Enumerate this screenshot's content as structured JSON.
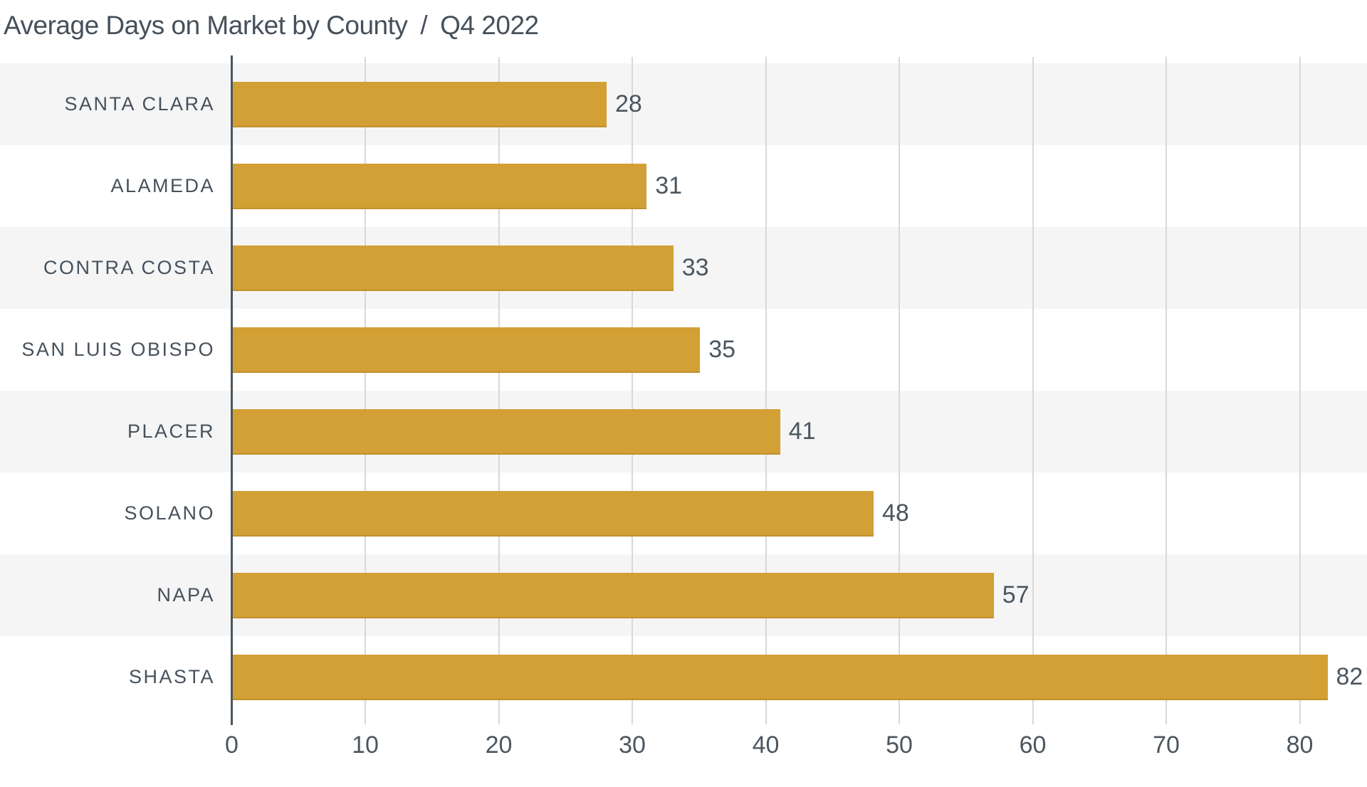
{
  "header": {
    "title": "Average Days on Market by County",
    "separator": "/",
    "period": "Q4 2022"
  },
  "chart_data": {
    "type": "bar",
    "orientation": "horizontal",
    "title": "Average Days on Market by County / Q4 2022",
    "categories": [
      "SANTA CLARA",
      "ALAMEDA",
      "CONTRA COSTA",
      "SAN LUIS OBISPO",
      "PLACER",
      "SOLANO",
      "NAPA",
      "SHASTA"
    ],
    "values": [
      28,
      31,
      33,
      35,
      41,
      48,
      57,
      82
    ],
    "data_labels_shown": true,
    "x_ticks": [
      0,
      10,
      20,
      30,
      40,
      50,
      60,
      70,
      80
    ],
    "xlim": [
      0,
      85
    ],
    "xlabel": "",
    "ylabel": "",
    "grid": "vertical",
    "row_striping": "alternate",
    "legend": "none"
  },
  "colors": {
    "bar": "#D2A034",
    "row_stripe": "#F5F5F6",
    "axis_line": "#4C565E",
    "gridline": "#D8D8DA",
    "title_text": "#46505A",
    "category_text": "#46515B",
    "value_text": "#4C565E",
    "tick_text": "#4C565E"
  }
}
